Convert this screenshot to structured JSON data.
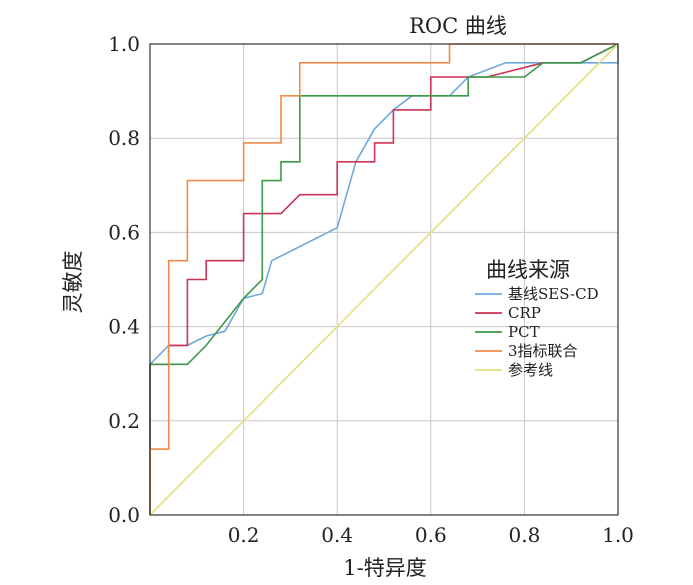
{
  "chart_data": {
    "type": "line",
    "title": "ROC 曲线",
    "xlabel": "1-特异度",
    "ylabel": "灵敏度",
    "xlim": [
      0,
      1
    ],
    "ylim": [
      0,
      1
    ],
    "x_ticks": [
      "0.2",
      "0.4",
      "0.6",
      "0.8",
      "1.0"
    ],
    "x_tick_values": [
      0.2,
      0.4,
      0.6,
      0.8,
      1.0
    ],
    "y_ticks": [
      "0.0",
      "0.2",
      "0.4",
      "0.6",
      "0.8",
      "1.0"
    ],
    "y_tick_values": [
      0.0,
      0.2,
      0.4,
      0.6,
      0.8,
      1.0
    ],
    "grid": true,
    "legend": {
      "title": "曲线来源",
      "position": "right"
    },
    "series": [
      {
        "name": "基线SES-CD",
        "color": "#6fa8dc",
        "points": [
          [
            0,
            0
          ],
          [
            0,
            0.32
          ],
          [
            0.04,
            0.36
          ],
          [
            0.08,
            0.36
          ],
          [
            0.12,
            0.38
          ],
          [
            0.16,
            0.39
          ],
          [
            0.2,
            0.46
          ],
          [
            0.24,
            0.47
          ],
          [
            0.26,
            0.54
          ],
          [
            0.4,
            0.61
          ],
          [
            0.44,
            0.75
          ],
          [
            0.48,
            0.82
          ],
          [
            0.52,
            0.86
          ],
          [
            0.56,
            0.89
          ],
          [
            0.64,
            0.89
          ],
          [
            0.68,
            0.93
          ],
          [
            0.76,
            0.96
          ],
          [
            0.8,
            0.96
          ],
          [
            0.84,
            0.96
          ],
          [
            1,
            0.96
          ],
          [
            1,
            1
          ]
        ]
      },
      {
        "name": "CRP",
        "color": "#cc3355",
        "points": [
          [
            0,
            0
          ],
          [
            0,
            0.32
          ],
          [
            0.04,
            0.32
          ],
          [
            0.04,
            0.36
          ],
          [
            0.08,
            0.36
          ],
          [
            0.08,
            0.5
          ],
          [
            0.12,
            0.5
          ],
          [
            0.12,
            0.54
          ],
          [
            0.2,
            0.54
          ],
          [
            0.2,
            0.64
          ],
          [
            0.28,
            0.64
          ],
          [
            0.32,
            0.68
          ],
          [
            0.4,
            0.68
          ],
          [
            0.4,
            0.75
          ],
          [
            0.48,
            0.75
          ],
          [
            0.48,
            0.79
          ],
          [
            0.52,
            0.79
          ],
          [
            0.52,
            0.86
          ],
          [
            0.6,
            0.86
          ],
          [
            0.6,
            0.93
          ],
          [
            0.68,
            0.93
          ],
          [
            0.72,
            0.93
          ],
          [
            0.84,
            0.96
          ],
          [
            0.92,
            0.96
          ],
          [
            1,
            1
          ]
        ]
      },
      {
        "name": "PCT",
        "color": "#3a9a4a",
        "points": [
          [
            0,
            0
          ],
          [
            0,
            0.32
          ],
          [
            0.08,
            0.32
          ],
          [
            0.12,
            0.36
          ],
          [
            0.2,
            0.46
          ],
          [
            0.24,
            0.5
          ],
          [
            0.24,
            0.71
          ],
          [
            0.28,
            0.71
          ],
          [
            0.28,
            0.75
          ],
          [
            0.32,
            0.75
          ],
          [
            0.32,
            0.89
          ],
          [
            0.68,
            0.89
          ],
          [
            0.68,
            0.93
          ],
          [
            0.8,
            0.93
          ],
          [
            0.84,
            0.96
          ],
          [
            0.92,
            0.96
          ],
          [
            1,
            1
          ]
        ]
      },
      {
        "name": "3指标联合",
        "color": "#f08a4b",
        "points": [
          [
            0,
            0
          ],
          [
            0,
            0.14
          ],
          [
            0.04,
            0.14
          ],
          [
            0.04,
            0.54
          ],
          [
            0.08,
            0.54
          ],
          [
            0.08,
            0.71
          ],
          [
            0.2,
            0.71
          ],
          [
            0.2,
            0.79
          ],
          [
            0.28,
            0.79
          ],
          [
            0.28,
            0.89
          ],
          [
            0.32,
            0.89
          ],
          [
            0.32,
            0.96
          ],
          [
            0.64,
            0.96
          ],
          [
            0.64,
            1
          ],
          [
            1,
            1
          ]
        ]
      },
      {
        "name": "参考线",
        "color": "#e2e07a",
        "points": [
          [
            0,
            0
          ],
          [
            1,
            1
          ]
        ]
      }
    ]
  }
}
